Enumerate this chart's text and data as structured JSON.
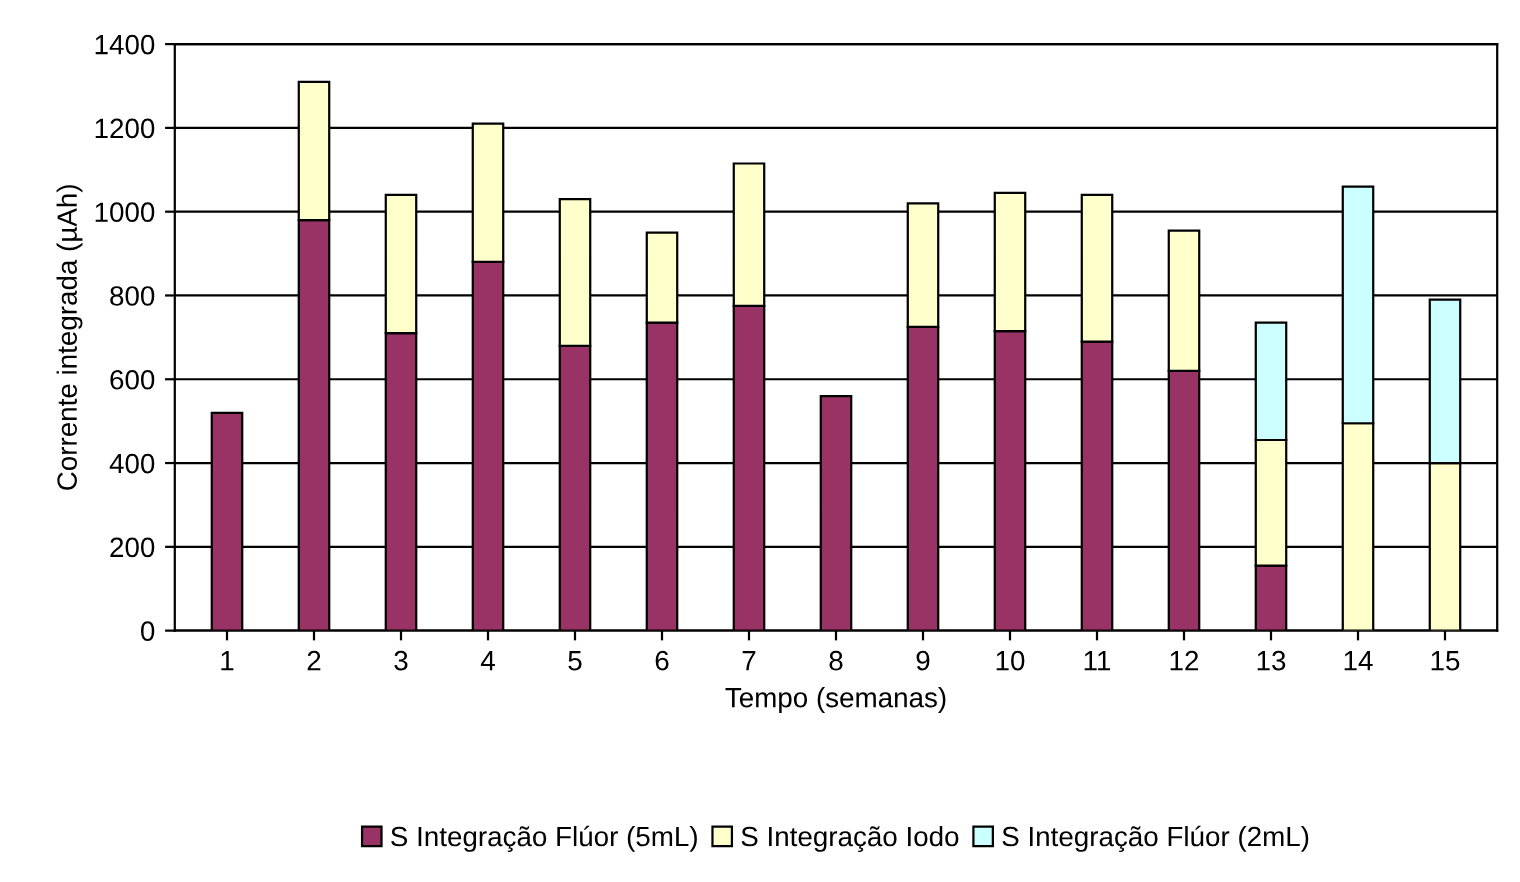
{
  "chart_data": {
    "type": "bar",
    "stacked": true,
    "xlabel": "Tempo (semanas)",
    "ylabel": "Corrente integrada (µAh)",
    "categories": [
      "1",
      "2",
      "3",
      "4",
      "5",
      "6",
      "7",
      "8",
      "9",
      "10",
      "11",
      "12",
      "13",
      "14",
      "15"
    ],
    "series": [
      {
        "name": "S Integração Flúor (5mL)",
        "color": "#993366",
        "values": [
          520,
          980,
          710,
          880,
          680,
          735,
          775,
          560,
          725,
          715,
          690,
          620,
          155,
          null,
          null
        ]
      },
      {
        "name": "S Integração Iodo",
        "color": "#ffffcc",
        "values": [
          null,
          330,
          330,
          330,
          350,
          215,
          340,
          null,
          295,
          330,
          350,
          335,
          300,
          495,
          400
        ]
      },
      {
        "name": "S Integração Flúor (2mL)",
        "color": "#ccffff",
        "values": [
          null,
          null,
          null,
          null,
          null,
          null,
          null,
          null,
          null,
          null,
          null,
          null,
          280,
          565,
          390
        ]
      }
    ],
    "ylim": [
      0,
      1400
    ],
    "yticks": [
      0,
      200,
      400,
      600,
      800,
      1000,
      1200,
      1400
    ],
    "grid": "y",
    "legend": "bottom"
  }
}
